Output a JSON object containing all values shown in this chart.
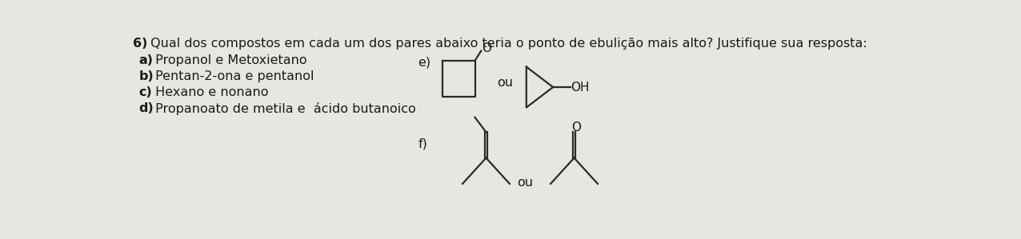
{
  "bg_color": "#e8e6e2",
  "title_bold": "6)",
  "title_text": " Qual dos compostos em cada um dos pares abaixo teria o ponto de ebulição mais alto? Justifique sua resposta:",
  "items": [
    {
      "label": "a)",
      "text": " Propanol e Metoxietano"
    },
    {
      "label": "b)",
      "text": " Pentan-2-ona e pentanol"
    },
    {
      "label": "c)",
      "text": " Hexano e nonano"
    },
    {
      "label": "d)",
      "text": " Propanoato de metila e  ácido butanoico"
    }
  ],
  "e_label": "e)",
  "f_label": "f)",
  "ou_text": "ou",
  "oh_text": "OH",
  "o_text": "O",
  "text_color": "#1a1a1a",
  "struct_color": "#2a2a2a",
  "title_fontsize": 11.5,
  "item_fontsize": 11.5,
  "label_fontsize": 11.5,
  "struct_linewidth": 1.6
}
